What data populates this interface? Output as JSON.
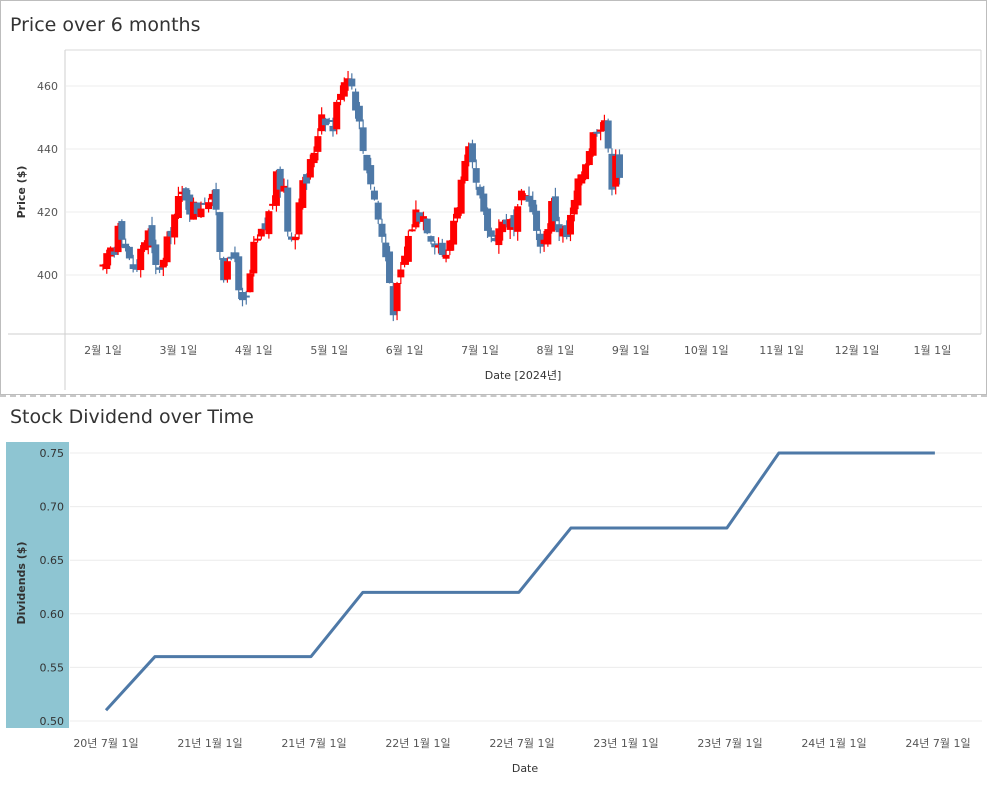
{
  "chart_data": [
    {
      "type": "candlestick",
      "title": "Price over 6 months",
      "xlabel": "Date [2024년]",
      "ylabel": "Price ($)",
      "ylim": [
        380,
        468
      ],
      "yticks": [
        "400",
        "420",
        "440",
        "460"
      ],
      "xticks": [
        "2월 1일",
        "3월 1일",
        "4월 1일",
        "5월 1일",
        "6월 1일",
        "7월 1일",
        "8월 1일",
        "9월 1일",
        "10월 1일",
        "11월 1일",
        "12월 1일",
        "1월 1일"
      ],
      "colors": {
        "up": "#ff0000",
        "down": "#4e79a7"
      },
      "grid": true,
      "close_path": [
        [
          0.0,
          401
        ],
        [
          0.1,
          408
        ],
        [
          0.15,
          407
        ],
        [
          0.2,
          418
        ],
        [
          0.25,
          414
        ],
        [
          0.35,
          404
        ],
        [
          0.45,
          401
        ],
        [
          0.5,
          409
        ],
        [
          0.6,
          413
        ],
        [
          0.7,
          402
        ],
        [
          0.8,
          404
        ],
        [
          0.9,
          415
        ],
        [
          1.0,
          423
        ],
        [
          1.08,
          427
        ],
        [
          1.15,
          422
        ],
        [
          1.25,
          421
        ],
        [
          1.35,
          425
        ],
        [
          1.5,
          422
        ],
        [
          1.55,
          409
        ],
        [
          1.62,
          398
        ],
        [
          1.68,
          405
        ],
        [
          1.75,
          408
        ],
        [
          1.8,
          393
        ],
        [
          1.85,
          390
        ],
        [
          1.9,
          392
        ],
        [
          2.0,
          408
        ],
        [
          2.15,
          415
        ],
        [
          2.25,
          424
        ],
        [
          2.3,
          430
        ],
        [
          2.4,
          428
        ],
        [
          2.45,
          415
        ],
        [
          2.55,
          413
        ],
        [
          2.6,
          426
        ],
        [
          2.7,
          430
        ],
        [
          2.8,
          440
        ],
        [
          2.9,
          452
        ],
        [
          3.05,
          447
        ],
        [
          3.15,
          460
        ],
        [
          3.25,
          465
        ],
        [
          3.35,
          455
        ],
        [
          3.45,
          440
        ],
        [
          3.55,
          430
        ],
        [
          3.65,
          418
        ],
        [
          3.75,
          406
        ],
        [
          3.85,
          390
        ],
        [
          3.95,
          400
        ],
        [
          4.05,
          412
        ],
        [
          4.15,
          420
        ],
        [
          4.25,
          419
        ],
        [
          4.35,
          413
        ],
        [
          4.45,
          410
        ],
        [
          4.55,
          405
        ],
        [
          4.65,
          418
        ],
        [
          4.75,
          429
        ],
        [
          4.85,
          438
        ],
        [
          4.95,
          428
        ],
        [
          5.05,
          418
        ],
        [
          5.15,
          412
        ],
        [
          5.25,
          415
        ],
        [
          5.35,
          418
        ],
        [
          5.45,
          414
        ],
        [
          5.55,
          424
        ],
        [
          5.65,
          426
        ],
        [
          5.75,
          412
        ],
        [
          5.85,
          411
        ],
        [
          5.95,
          422
        ],
        [
          6.05,
          415
        ],
        [
          6.15,
          412
        ],
        [
          6.25,
          423
        ],
        [
          6.35,
          433
        ],
        [
          6.45,
          441
        ],
        [
          6.55,
          448
        ],
        [
          6.65,
          450
        ],
        [
          6.7,
          438
        ],
        [
          6.75,
          430
        ],
        [
          6.8,
          440
        ],
        [
          6.85,
          432
        ]
      ]
    },
    {
      "type": "line",
      "title": "Stock Dividend over Time",
      "xlabel": "Date",
      "ylabel": "Dividends ($)",
      "ylim": [
        0.5,
        0.755
      ],
      "yticks": [
        "0.50",
        "0.55",
        "0.60",
        "0.65",
        "0.70",
        "0.75"
      ],
      "xticks": [
        "20년 7월 1일",
        "21년 1월 1일",
        "21년 7월 1일",
        "22년 1월 1일",
        "22년 7월 1일",
        "23년 1월 1일",
        "23년 7월 1일",
        "24년 1월 1일",
        "24년 7월 1일"
      ],
      "line_color": "#4e79a7",
      "series": [
        {
          "x": [
            0,
            0.47,
            1.97,
            2.47,
            3.97,
            4.47,
            5.97,
            6.47,
            7.97
          ],
          "y": [
            0.51,
            0.56,
            0.56,
            0.62,
            0.62,
            0.68,
            0.68,
            0.75,
            0.75
          ]
        }
      ]
    }
  ]
}
